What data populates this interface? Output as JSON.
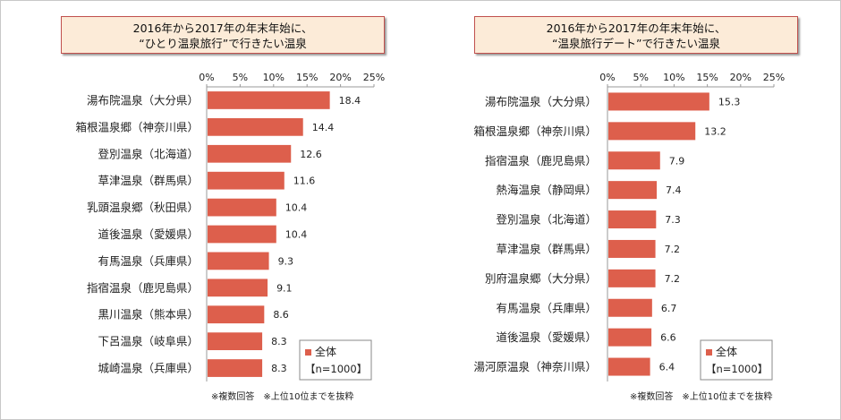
{
  "chart_data": [
    {
      "type": "bar",
      "orientation": "horizontal",
      "title": "2016年から2017年の年末年始に、",
      "subtitle": "“ひとり温泉旅行”で行きたい温泉",
      "categories": [
        "湯布院温泉（大分県）",
        "箱根温泉郷（神奈川県）",
        "登別温泉（北海道）",
        "草津温泉（群馬県）",
        "乳頭温泉郷（秋田県）",
        "道後温泉（愛媛県）",
        "有馬温泉（兵庫県）",
        "指宿温泉（鹿児島県）",
        "黒川温泉（熊本県）",
        "下呂温泉（岐阜県）",
        "城崎温泉（兵庫県）"
      ],
      "series": [
        {
          "name": "全体",
          "values": [
            18.4,
            14.4,
            12.6,
            11.6,
            10.4,
            10.4,
            9.3,
            9.1,
            8.6,
            8.3,
            8.3
          ]
        }
      ],
      "xlim": [
        0,
        25
      ],
      "ticks": [
        "0%",
        "5%",
        "10%",
        "15%",
        "20%",
        "25%"
      ],
      "legend": {
        "label": "全体",
        "note": "【n=1000】",
        "position": "bottom-right"
      },
      "footnote": "※複数回答　※上位10位までを抜粋",
      "bar_color": "#dd5f4c",
      "grid": false
    },
    {
      "type": "bar",
      "orientation": "horizontal",
      "title": "2016年から2017年の年末年始に、",
      "subtitle": "“温泉旅行デート”で行きたい温泉",
      "categories": [
        "湯布院温泉（大分県）",
        "箱根温泉郷（神奈川県）",
        "指宿温泉（鹿児島県）",
        "熱海温泉（静岡県）",
        "登別温泉（北海道）",
        "草津温泉（群馬県）",
        "別府温泉郷（大分県）",
        "有馬温泉（兵庫県）",
        "道後温泉（愛媛県）",
        "湯河原温泉（神奈川県）"
      ],
      "series": [
        {
          "name": "全体",
          "values": [
            15.3,
            13.2,
            7.9,
            7.4,
            7.3,
            7.2,
            7.2,
            6.7,
            6.6,
            6.4
          ]
        }
      ],
      "xlim": [
        0,
        25
      ],
      "ticks": [
        "0%",
        "5%",
        "10%",
        "15%",
        "20%",
        "25%"
      ],
      "legend": {
        "label": "全体",
        "note": "【n=1000】",
        "position": "bottom-right"
      },
      "footnote": "※複数回答　※上位10位までを抜粋",
      "bar_color": "#dd5f4c",
      "grid": false
    }
  ]
}
